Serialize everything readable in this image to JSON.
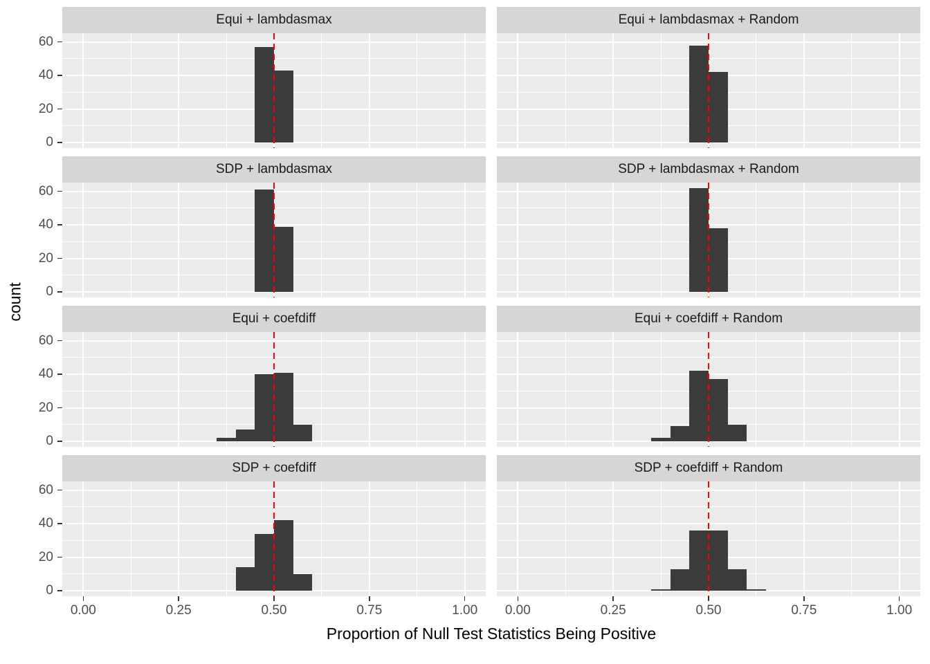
{
  "chart_data": {
    "type": "bar",
    "subtype": "faceted-histogram",
    "title": "",
    "xlabel": "Proportion of Null Test Statistics Being Positive",
    "ylabel": "count",
    "bin_width": 0.05,
    "x_ticks": [
      0,
      0.25,
      0.5,
      0.75,
      1
    ],
    "x_tick_labels": [
      "0.00",
      "0.25",
      "0.50",
      "0.75",
      "1.00"
    ],
    "x_minor_ticks": [
      0.125,
      0.375,
      0.625,
      0.875
    ],
    "y_ticks": [
      0,
      20,
      40,
      60
    ],
    "y_tick_labels": [
      "0",
      "20",
      "40",
      "60"
    ],
    "y_minor_ticks": [
      10,
      30,
      50
    ],
    "xlim": [
      -0.055,
      1.055
    ],
    "ylim": [
      -3.25,
      65.25
    ],
    "grid": true,
    "legend_position": "none",
    "reference_line": {
      "x": 0.5,
      "color": "#FF0000",
      "style": "dashed"
    },
    "colors": {
      "bar": "#3C3C3C",
      "panel_background": "#EBEBEB",
      "strip_background": "#D6D6D6",
      "gridline": "#FFFFFF",
      "tick_text": "#4D4D4D",
      "strip_text": "#1A1A1A"
    },
    "panels": [
      {
        "title": "Equi + lambdasmax",
        "bins": [
          {
            "x": 0.45,
            "count": 57
          },
          {
            "x": 0.5,
            "count": 43
          }
        ]
      },
      {
        "title": "Equi + lambdasmax + Random",
        "bins": [
          {
            "x": 0.45,
            "count": 58
          },
          {
            "x": 0.5,
            "count": 42
          }
        ]
      },
      {
        "title": "SDP + lambdasmax",
        "bins": [
          {
            "x": 0.45,
            "count": 61
          },
          {
            "x": 0.5,
            "count": 39
          }
        ]
      },
      {
        "title": "SDP + lambdasmax + Random",
        "bins": [
          {
            "x": 0.45,
            "count": 62
          },
          {
            "x": 0.5,
            "count": 38
          }
        ]
      },
      {
        "title": "Equi + coefdiff",
        "bins": [
          {
            "x": 0.35,
            "count": 2
          },
          {
            "x": 0.4,
            "count": 7
          },
          {
            "x": 0.45,
            "count": 40
          },
          {
            "x": 0.5,
            "count": 41
          },
          {
            "x": 0.55,
            "count": 10
          }
        ]
      },
      {
        "title": "Equi + coefdiff + Random",
        "bins": [
          {
            "x": 0.35,
            "count": 2
          },
          {
            "x": 0.4,
            "count": 9
          },
          {
            "x": 0.45,
            "count": 42
          },
          {
            "x": 0.5,
            "count": 37
          },
          {
            "x": 0.55,
            "count": 10
          }
        ]
      },
      {
        "title": "SDP + coefdiff",
        "bins": [
          {
            "x": 0.4,
            "count": 14
          },
          {
            "x": 0.45,
            "count": 34
          },
          {
            "x": 0.5,
            "count": 42
          },
          {
            "x": 0.55,
            "count": 10
          }
        ]
      },
      {
        "title": "SDP + coefdiff + Random",
        "bins": [
          {
            "x": 0.35,
            "count": 1
          },
          {
            "x": 0.4,
            "count": 13
          },
          {
            "x": 0.45,
            "count": 36
          },
          {
            "x": 0.5,
            "count": 36
          },
          {
            "x": 0.55,
            "count": 13
          },
          {
            "x": 0.6,
            "count": 1
          }
        ]
      }
    ]
  }
}
